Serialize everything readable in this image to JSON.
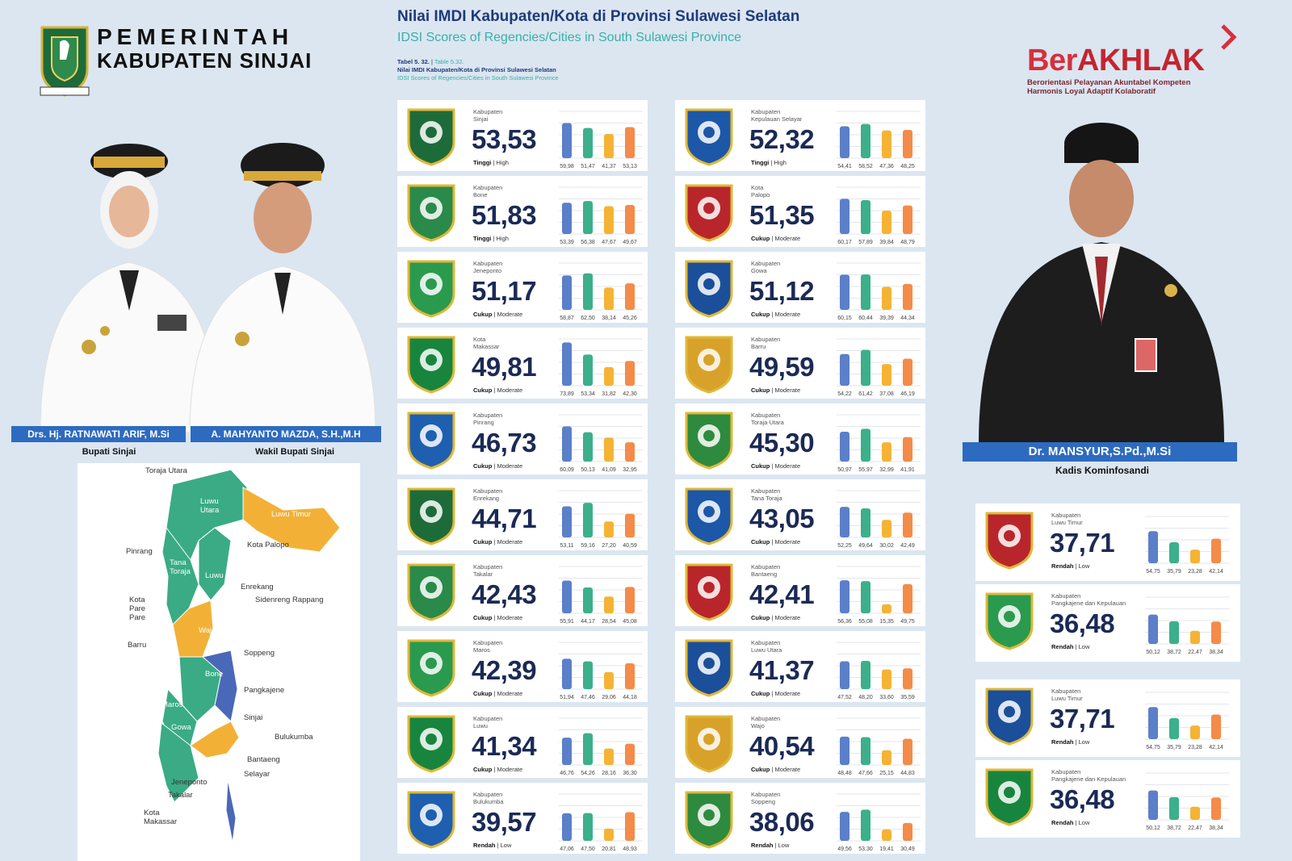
{
  "header": {
    "gov_line1": "PEMERINTAH",
    "gov_line2": "KABUPATEN SINJAI",
    "title": "Nilai IMDI Kabupaten/Kota di Provinsi Sulawesi Selatan",
    "subtitle": "IDSI Scores of Regencies/Cities in South Sulawesi Province",
    "table_ref_a": "Tabel 5. 32.",
    "table_ref_b": "Table 5.32.",
    "table_title": "Nilai IMDI Kabupaten/Kota di Provinsi Sulawesi Selatan",
    "table_sub": "IDSI Scores of Regencies/Cities in South Sulawesi Province"
  },
  "brand": {
    "title_a": "Ber",
    "title_b": "AKHLAK",
    "line1": "Berorientasi Pelayanan Akuntabel Kompeten",
    "line2": "Harmonis Loyal Adaptif Kolaboratif"
  },
  "officials": [
    {
      "name": "Drs. Hj. RATNAWATI ARIF, M.Si",
      "role": "Bupati Sinjai"
    },
    {
      "name": "A. MAHYANTO MAZDA, S.H.,M.H",
      "role": "Wakil Bupati Sinjai"
    },
    {
      "name": "Dr. MANSYUR,S.Pd.,M.Si",
      "role": "Kadis Kominfosandi"
    }
  ],
  "map_labels": [
    "Toraja Utara",
    "Luwu Utara",
    "Luwu Timur",
    "Kota Palopo",
    "Pinrang",
    "Tana Toraja",
    "Luwu",
    "Enrekang",
    "Sidenreng Rappang",
    "Kota Pare Pare",
    "Wajo",
    "Barru",
    "Soppeng",
    "Bone",
    "Pangkajene",
    "Maros",
    "Sinjai",
    "Gowa",
    "Bulukumba",
    "Bantaeng",
    "Jeneponto",
    "Selayar",
    "Takalar",
    "Kota Makassar"
  ],
  "colors": {
    "bar1": "#5b7fc9",
    "bar2": "#3bb08a",
    "bar3": "#f5b335",
    "bar4": "#f48b48",
    "map_green": "#3aab85",
    "map_orange": "#f2b136",
    "map_blue": "#4a68b8"
  },
  "chart_data": {
    "type": "bar",
    "series_labels_per_card": 4,
    "cards": [
      {
        "kind": "Kabupaten",
        "name": "Sinjai",
        "score": "53,53",
        "category": "Tinggi",
        "category_en": "High",
        "values": [
          59.98,
          51.47,
          41.37,
          53.13
        ],
        "labels": [
          "59,98",
          "51,47",
          "41,37",
          "53,13"
        ]
      },
      {
        "kind": "Kabupaten",
        "name": "Kepulauan Selayar",
        "score": "52,32",
        "category": "Tinggi",
        "category_en": "High",
        "values": [
          54.41,
          58.52,
          47.36,
          48.25
        ],
        "labels": [
          "54,41",
          "58,52",
          "47,36",
          "48,25"
        ]
      },
      {
        "kind": "Kabupaten",
        "name": "Bone",
        "score": "51,83",
        "category": "Tinggi",
        "category_en": "High",
        "values": [
          53.39,
          56.38,
          47.67,
          49.67
        ],
        "labels": [
          "53,39",
          "56,38",
          "47,67",
          "49,67"
        ]
      },
      {
        "kind": "Kota",
        "name": "Palopo",
        "score": "51,35",
        "category": "Cukup",
        "category_en": "Moderate",
        "values": [
          60.17,
          57.89,
          39.84,
          48.79
        ],
        "labels": [
          "60,17",
          "57,89",
          "39,84",
          "48,79"
        ]
      },
      {
        "kind": "Kabupaten",
        "name": "Jeneponto",
        "score": "51,17",
        "category": "Cukup",
        "category_en": "Moderate",
        "values": [
          58.87,
          62.5,
          38.14,
          45.26
        ],
        "labels": [
          "58,87",
          "62,50",
          "38,14",
          "45,26"
        ]
      },
      {
        "kind": "Kabupaten",
        "name": "Gowa",
        "score": "51,12",
        "category": "Cukup",
        "category_en": "Moderate",
        "values": [
          60.15,
          60.44,
          39.39,
          44.34
        ],
        "labels": [
          "60,15",
          "60,44",
          "39,39",
          "44,34"
        ]
      },
      {
        "kind": "Kota",
        "name": "Makassar",
        "score": "49,81",
        "category": "Cukup",
        "category_en": "Moderate",
        "values": [
          73.89,
          53.34,
          31.82,
          42.3
        ],
        "labels": [
          "73,89",
          "53,34",
          "31,82",
          "42,30"
        ]
      },
      {
        "kind": "Kabupaten",
        "name": "Barru",
        "score": "49,59",
        "category": "Cukup",
        "category_en": "Moderate",
        "values": [
          54.22,
          61.42,
          37.08,
          46.19
        ],
        "labels": [
          "54,22",
          "61,42",
          "37,08",
          "46,19"
        ]
      },
      {
        "kind": "Kabupaten",
        "name": "Pinrang",
        "score": "46,73",
        "category": "Cukup",
        "category_en": "Moderate",
        "values": [
          60.09,
          50.13,
          41.09,
          32.95
        ],
        "labels": [
          "60,09",
          "50,13",
          "41,09",
          "32,95"
        ]
      },
      {
        "kind": "Kabupaten",
        "name": "Toraja Utara",
        "score": "45,30",
        "category": "Cukup",
        "category_en": "Moderate",
        "values": [
          50.97,
          55.97,
          32.99,
          41.91
        ],
        "labels": [
          "50,97",
          "55,97",
          "32,99",
          "41,91"
        ]
      },
      {
        "kind": "Kabupaten",
        "name": "Enrekang",
        "score": "44,71",
        "category": "Cukup",
        "category_en": "Moderate",
        "values": [
          53.11,
          59.16,
          27.2,
          40.59
        ],
        "labels": [
          "53,11",
          "59,16",
          "27,20",
          "40,59"
        ]
      },
      {
        "kind": "Kabupaten",
        "name": "Tana Toraja",
        "score": "43,05",
        "category": "Cukup",
        "category_en": "Moderate",
        "values": [
          52.25,
          49.64,
          30.02,
          42.49
        ],
        "labels": [
          "52,25",
          "49,64",
          "30,02",
          "42,49"
        ]
      },
      {
        "kind": "Kabupaten",
        "name": "Takalar",
        "score": "42,43",
        "category": "Cukup",
        "category_en": "Moderate",
        "values": [
          55.91,
          44.17,
          28.54,
          45.08
        ],
        "labels": [
          "55,91",
          "44,17",
          "28,54",
          "45,08"
        ]
      },
      {
        "kind": "Kabupaten",
        "name": "Bantaeng",
        "score": "42,41",
        "category": "Cukup",
        "category_en": "Moderate",
        "values": [
          56.36,
          55.08,
          15.35,
          49.75
        ],
        "labels": [
          "56,36",
          "55,08",
          "15,35",
          "49,75"
        ]
      },
      {
        "kind": "Kabupaten",
        "name": "Maros",
        "score": "42,39",
        "category": "Cukup",
        "category_en": "Moderate",
        "values": [
          51.94,
          47.46,
          29.06,
          44.18
        ],
        "labels": [
          "51,94",
          "47,46",
          "29,06",
          "44,18"
        ]
      },
      {
        "kind": "Kabupaten",
        "name": "Luwu Utara",
        "score": "41,37",
        "category": "Cukup",
        "category_en": "Moderate",
        "values": [
          47.52,
          48.2,
          33.6,
          35.59
        ],
        "labels": [
          "47,52",
          "48,20",
          "33,60",
          "35,59"
        ]
      },
      {
        "kind": "Kabupaten",
        "name": "Luwu",
        "score": "41,34",
        "category": "Cukup",
        "category_en": "Moderate",
        "values": [
          46.76,
          54.26,
          28.16,
          36.3
        ],
        "labels": [
          "46,76",
          "54,26",
          "28,16",
          "36,30"
        ]
      },
      {
        "kind": "Kabupaten",
        "name": "Wajo",
        "score": "40,54",
        "category": "Cukup",
        "category_en": "Moderate",
        "values": [
          48.48,
          47.66,
          25.15,
          44.83
        ],
        "labels": [
          "48,48",
          "47,66",
          "25,15",
          "44,83"
        ]
      },
      {
        "kind": "Kabupaten",
        "name": "Bulukumba",
        "score": "39,57",
        "category": "Rendah",
        "category_en": "Low",
        "values": [
          47.06,
          47.5,
          20.81,
          48.93
        ],
        "labels": [
          "47,06",
          "47,50",
          "20,81",
          "48,93"
        ]
      },
      {
        "kind": "Kabupaten",
        "name": "Soppeng",
        "score": "38,06",
        "category": "Rendah",
        "category_en": "Low",
        "values": [
          49.56,
          53.3,
          19.41,
          30.49
        ],
        "labels": [
          "49,56",
          "53,30",
          "19,41",
          "30,49"
        ]
      }
    ],
    "side_cards": [
      {
        "kind": "Kabupaten",
        "name": "Luwu Timur",
        "score": "37,71",
        "category": "Rendah",
        "category_en": "Low",
        "values": [
          54.75,
          35.79,
          23.28,
          42.14
        ],
        "labels": [
          "54,75",
          "35,79",
          "23,28",
          "42,14"
        ]
      },
      {
        "kind": "Kabupaten",
        "name": "Pangkajene dan Kepulauan",
        "score": "36,48",
        "category": "Rendah",
        "category_en": "Low",
        "values": [
          50.12,
          38.72,
          22.47,
          38.34
        ],
        "labels": [
          "50,12",
          "38,72",
          "22,47",
          "38,34"
        ]
      },
      {
        "kind": "Kabupaten",
        "name": "Luwu Timur",
        "score": "37,71",
        "category": "Rendah",
        "category_en": "Low",
        "values": [
          54.75,
          35.79,
          23.28,
          42.14
        ],
        "labels": [
          "54,75",
          "35,79",
          "23,28",
          "42,14"
        ]
      },
      {
        "kind": "Kabupaten",
        "name": "Pangkajene dan Kepulauan",
        "score": "36,48",
        "category": "Rendah",
        "category_en": "Low",
        "values": [
          50.12,
          38.72,
          22.47,
          38.34
        ],
        "labels": [
          "50,12",
          "38,72",
          "22,47",
          "38,34"
        ]
      }
    ],
    "ylim": [
      0,
      80
    ]
  }
}
